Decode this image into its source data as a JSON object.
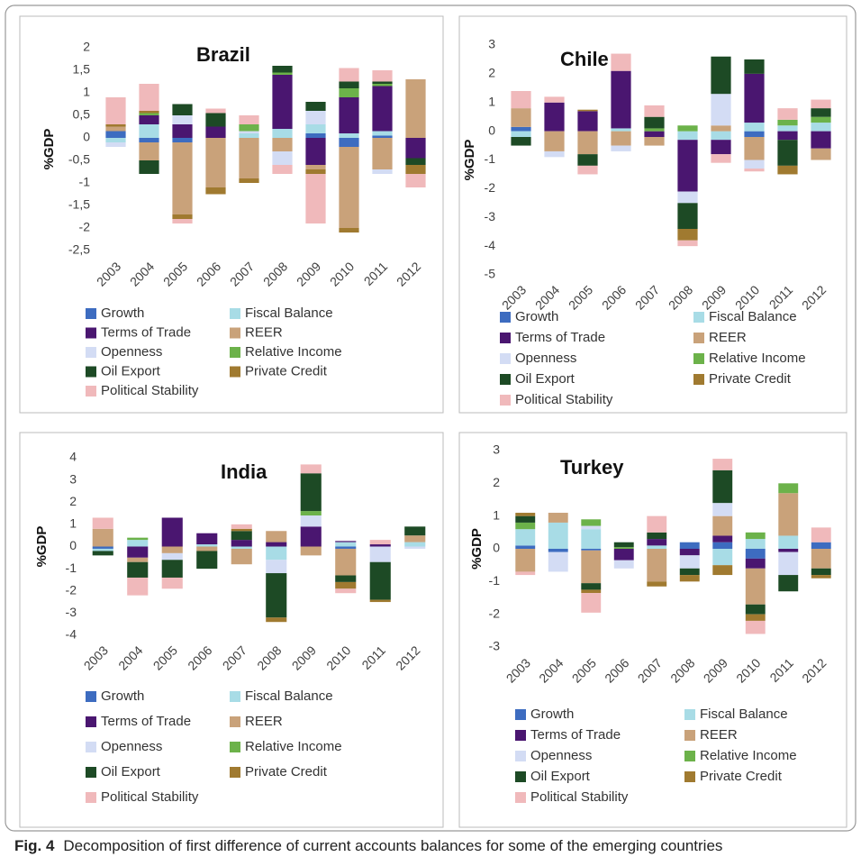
{
  "chart_data": [
    {
      "type": "bar",
      "stacked": true,
      "title": "Brazil",
      "y_label": "%GDP",
      "categories": [
        "2003",
        "2004",
        "2005",
        "2006",
        "2007",
        "2008",
        "2009",
        "2010",
        "2011",
        "2012"
      ],
      "ylim": [
        -2.5,
        2
      ],
      "yticks": [
        {
          "value": -2.5,
          "label": "-2,5"
        },
        -2,
        {
          "value": -1.5,
          "label": "-1,5"
        },
        -1,
        {
          "value": -0.5,
          "label": "-0,5"
        },
        0,
        {
          "value": 0.5,
          "label": "0,5"
        },
        1,
        {
          "value": 1.5,
          "label": "1,5"
        },
        2
      ],
      "series": [
        {
          "name": "Growth",
          "color": "#3d6cc0",
          "values": [
            0.15,
            -0.1,
            -0.1,
            0,
            0,
            0,
            0.1,
            -0.2,
            0.05,
            0
          ]
        },
        {
          "name": "Fiscal Balance",
          "color": "#a8dce6",
          "values": [
            -0.1,
            0.3,
            0,
            0,
            0.1,
            0.2,
            0.2,
            0.1,
            0.1,
            0
          ]
        },
        {
          "name": "Terms of Trade",
          "color": "#4a1670",
          "values": [
            0,
            0.2,
            0.3,
            0.25,
            0,
            1.2,
            -0.6,
            0.8,
            1.0,
            -0.45
          ]
        },
        {
          "name": "REER",
          "color": "#c9a27a",
          "values": [
            0.1,
            -0.4,
            -1.6,
            -1.1,
            -0.9,
            -0.3,
            -0.1,
            -1.8,
            -0.7,
            1.3
          ]
        },
        {
          "name": "Openness",
          "color": "#d3dcf4",
          "values": [
            -0.1,
            0,
            0.2,
            0,
            0.05,
            -0.3,
            0.3,
            0,
            -0.1,
            0
          ]
        },
        {
          "name": "Relative Income",
          "color": "#6cb24a",
          "values": [
            0,
            0.05,
            0,
            0,
            0.15,
            0.05,
            0,
            0.2,
            0.05,
            0
          ]
        },
        {
          "name": "Oil Export",
          "color": "#1d4a25",
          "values": [
            0,
            -0.3,
            0.25,
            0.3,
            0,
            0.15,
            0.2,
            0.15,
            0.05,
            -0.15
          ]
        },
        {
          "name": "Private Credit",
          "color": "#a07a30",
          "values": [
            0.05,
            0.05,
            -0.1,
            -0.15,
            -0.1,
            0,
            -0.1,
            -0.1,
            0,
            -0.2
          ]
        },
        {
          "name": "Political Stability",
          "color": "#f0b9bb",
          "values": [
            0.6,
            0.6,
            -0.1,
            0.1,
            0.2,
            -0.2,
            -1.1,
            0.3,
            0.25,
            -0.3
          ]
        }
      ]
    },
    {
      "type": "bar",
      "stacked": true,
      "title": "Chile",
      "y_label": "%GDP",
      "categories": [
        "2003",
        "2004",
        "2005",
        "2006",
        "2007",
        "2008",
        "2009",
        "2010",
        "2011",
        "2012"
      ],
      "ylim": [
        -5,
        3
      ],
      "yticks": [
        -5,
        -4,
        -3,
        -2,
        -1,
        0,
        1,
        2,
        3
      ],
      "series": [
        {
          "name": "Growth",
          "color": "#3d6cc0",
          "values": [
            0.15,
            0,
            0,
            0,
            0,
            0,
            0,
            -0.2,
            0,
            0
          ]
        },
        {
          "name": "Fiscal Balance",
          "color": "#a8dce6",
          "values": [
            -0.2,
            0,
            0,
            0.1,
            0,
            -0.3,
            -0.3,
            0.3,
            0.2,
            0.3
          ]
        },
        {
          "name": "Terms of Trade",
          "color": "#4a1670",
          "values": [
            0,
            1.0,
            0.7,
            2.0,
            -0.2,
            -1.8,
            -0.5,
            1.7,
            -0.3,
            -0.6
          ]
        },
        {
          "name": "REER",
          "color": "#c9a27a",
          "values": [
            0.65,
            -0.7,
            -0.8,
            -0.5,
            -0.3,
            0,
            0.2,
            -0.8,
            0,
            -0.4
          ]
        },
        {
          "name": "Openness",
          "color": "#d3dcf4",
          "values": [
            0,
            -0.2,
            0,
            -0.2,
            0,
            -0.4,
            1.1,
            -0.3,
            0,
            0
          ]
        },
        {
          "name": "Relative Income",
          "color": "#6cb24a",
          "values": [
            0,
            0,
            0,
            0,
            0.1,
            0.2,
            0,
            0,
            0.2,
            0.2
          ]
        },
        {
          "name": "Oil Export",
          "color": "#1d4a25",
          "values": [
            -0.3,
            0,
            -0.4,
            0,
            0.4,
            -0.9,
            1.3,
            0.5,
            -0.9,
            0.3
          ]
        },
        {
          "name": "Private Credit",
          "color": "#a07a30",
          "values": [
            0,
            0,
            0.05,
            0,
            0,
            -0.4,
            0,
            0,
            -0.3,
            0
          ]
        },
        {
          "name": "Political Stability",
          "color": "#f0b9bb",
          "values": [
            0.6,
            0.2,
            -0.3,
            0.6,
            0.4,
            -0.2,
            -0.3,
            -0.1,
            0.4,
            0.3
          ]
        }
      ]
    },
    {
      "type": "bar",
      "stacked": true,
      "title": "India",
      "y_label": "%GDP",
      "categories": [
        "2003",
        "2004",
        "2005",
        "2006",
        "2007",
        "2008",
        "2009",
        "2010",
        "2011",
        "2012"
      ],
      "ylim": [
        -4,
        4
      ],
      "yticks": [
        -4,
        -3,
        -2,
        -1,
        0,
        1,
        2,
        3,
        4
      ],
      "series": [
        {
          "name": "Growth",
          "color": "#3d6cc0",
          "values": [
            -0.1,
            0,
            0,
            0,
            0,
            0,
            0,
            -0.1,
            0,
            0
          ]
        },
        {
          "name": "Fiscal Balance",
          "color": "#a8dce6",
          "values": [
            -0.1,
            0.3,
            0,
            0.1,
            -0.1,
            -0.6,
            0,
            0.2,
            0,
            0.2
          ]
        },
        {
          "name": "Terms of Trade",
          "color": "#4a1670",
          "values": [
            0,
            -0.5,
            1.3,
            0.5,
            0.3,
            0.2,
            0.9,
            0.05,
            0.1,
            0
          ]
        },
        {
          "name": "REER",
          "color": "#c9a27a",
          "values": [
            0.8,
            -0.2,
            -0.3,
            -0.2,
            -0.7,
            0.5,
            -0.4,
            -1.2,
            0,
            0.3
          ]
        },
        {
          "name": "Openness",
          "color": "#d3dcf4",
          "values": [
            0,
            0,
            -0.3,
            0,
            0,
            -0.6,
            0.5,
            0,
            -0.7,
            -0.1
          ]
        },
        {
          "name": "Relative Income",
          "color": "#6cb24a",
          "values": [
            0,
            0.1,
            0,
            0,
            0,
            0,
            0.2,
            0,
            0,
            0
          ]
        },
        {
          "name": "Oil Export",
          "color": "#1d4a25",
          "values": [
            -0.2,
            -0.7,
            -0.8,
            -0.8,
            0.4,
            -2.0,
            1.7,
            -0.3,
            -1.7,
            0.4
          ]
        },
        {
          "name": "Private Credit",
          "color": "#a07a30",
          "values": [
            0,
            0,
            0,
            0,
            0.1,
            -0.2,
            0,
            -0.3,
            -0.1,
            0
          ]
        },
        {
          "name": "Political Stability",
          "color": "#f0b9bb",
          "values": [
            0.5,
            -0.8,
            -0.5,
            0,
            0.2,
            0,
            0.4,
            -0.2,
            0.2,
            0
          ]
        }
      ]
    },
    {
      "type": "bar",
      "stacked": true,
      "title": "Turkey",
      "y_label": "%GDP",
      "categories": [
        "2003",
        "2004",
        "2005",
        "2006",
        "2007",
        "2008",
        "2009",
        "2010",
        "2011",
        "2012"
      ],
      "ylim": [
        -3,
        3
      ],
      "yticks": [
        -3,
        -2,
        -1,
        0,
        1,
        2,
        3
      ],
      "series": [
        {
          "name": "Growth",
          "color": "#3d6cc0",
          "values": [
            0.1,
            -0.1,
            -0.05,
            0,
            0,
            0.2,
            0.2,
            -0.3,
            0,
            0.2
          ]
        },
        {
          "name": "Fiscal Balance",
          "color": "#a8dce6",
          "values": [
            0.5,
            0.8,
            0.6,
            0,
            0.1,
            0,
            -0.5,
            0.3,
            0.4,
            0
          ]
        },
        {
          "name": "Terms of Trade",
          "color": "#4a1670",
          "values": [
            0,
            0,
            0,
            -0.35,
            0.2,
            -0.2,
            0.2,
            -0.3,
            -0.1,
            0
          ]
        },
        {
          "name": "REER",
          "color": "#c9a27a",
          "values": [
            -0.7,
            0.3,
            -1.0,
            0,
            -1.0,
            0,
            0.6,
            -1.1,
            1.3,
            -0.6
          ]
        },
        {
          "name": "Openness",
          "color": "#d3dcf4",
          "values": [
            0,
            -0.6,
            0.1,
            -0.25,
            0,
            -0.4,
            0.4,
            0,
            -0.7,
            0
          ]
        },
        {
          "name": "Relative Income",
          "color": "#6cb24a",
          "values": [
            0.2,
            0,
            0.2,
            0.05,
            0,
            0,
            0,
            0.2,
            0.3,
            0
          ]
        },
        {
          "name": "Oil Export",
          "color": "#1d4a25",
          "values": [
            0.2,
            0,
            -0.2,
            0.15,
            0.2,
            -0.2,
            1.0,
            -0.3,
            -0.5,
            -0.2
          ]
        },
        {
          "name": "Private Credit",
          "color": "#a07a30",
          "values": [
            0.1,
            0,
            -0.1,
            0,
            -0.15,
            -0.2,
            -0.3,
            -0.2,
            0,
            -0.1
          ]
        },
        {
          "name": "Political Stability",
          "color": "#f0b9bb",
          "values": [
            -0.1,
            0,
            -0.6,
            0,
            0.5,
            0,
            0.35,
            -0.4,
            0,
            0.45
          ]
        }
      ]
    }
  ],
  "caption": {
    "label": "Fig. 4",
    "text": "Decomposition of first difference of current accounts balances for some of the emerging countries"
  }
}
